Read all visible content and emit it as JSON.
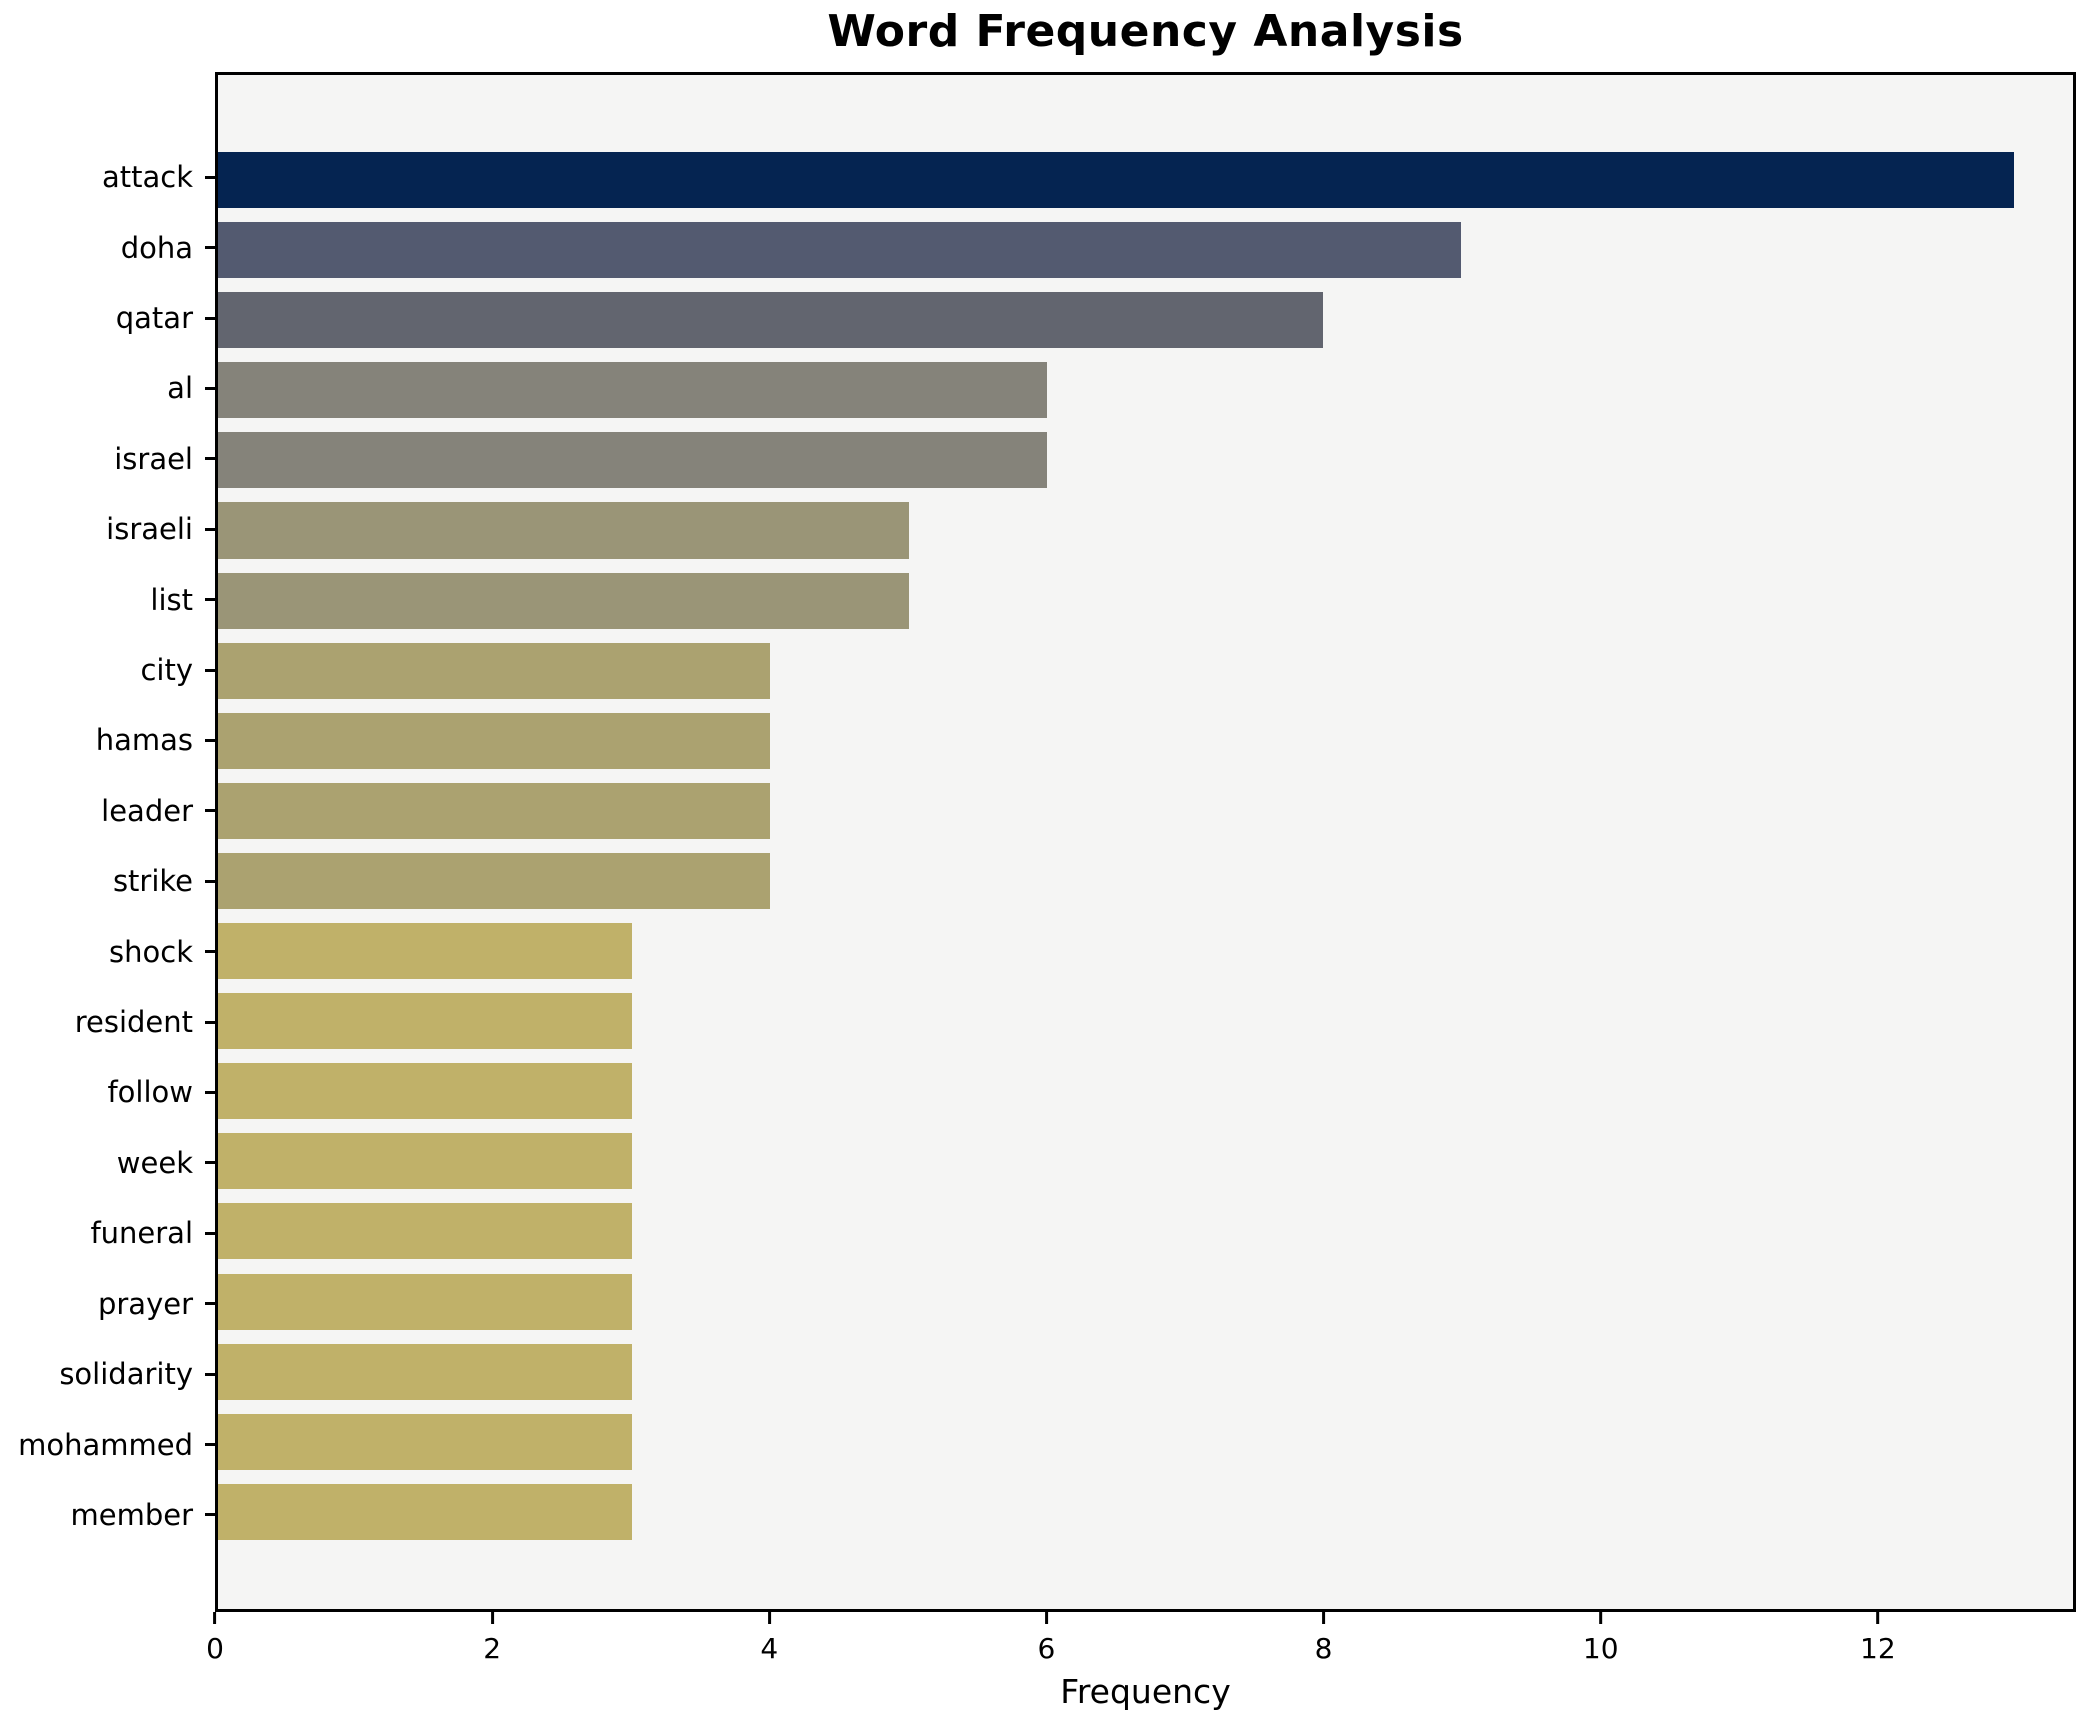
{
  "title": "Word Frequency Analysis",
  "chart_data": {
    "type": "bar",
    "orientation": "horizontal",
    "title": "Word Frequency Analysis",
    "xlabel": "Frequency",
    "ylabel": "",
    "categories": [
      "attack",
      "doha",
      "qatar",
      "al",
      "israel",
      "israeli",
      "list",
      "city",
      "hamas",
      "leader",
      "strike",
      "shock",
      "resident",
      "follow",
      "week",
      "funeral",
      "prayer",
      "solidarity",
      "mohammed",
      "member"
    ],
    "values": [
      13,
      9,
      8,
      6,
      6,
      5,
      5,
      4,
      4,
      4,
      4,
      3,
      3,
      3,
      3,
      3,
      3,
      3,
      3,
      3
    ],
    "bar_colors": [
      "#052451",
      "#535a70",
      "#62656f",
      "#85837a",
      "#85837a",
      "#9a9577",
      "#9a9577",
      "#aba270",
      "#aba270",
      "#aba270",
      "#aba270",
      "#c0b169",
      "#c0b169",
      "#c0b169",
      "#c0b169",
      "#c0b169",
      "#c0b169",
      "#c0b169",
      "#c0b169",
      "#c0b169"
    ],
    "x_ticks": [
      0,
      2,
      4,
      6,
      8,
      10,
      12
    ],
    "xlim": [
      0,
      13.43
    ],
    "grid": false,
    "legend_position": "none",
    "plot_background": "#f5f5f4",
    "figure_background": "#ffffff",
    "spine_color": "#000000"
  }
}
